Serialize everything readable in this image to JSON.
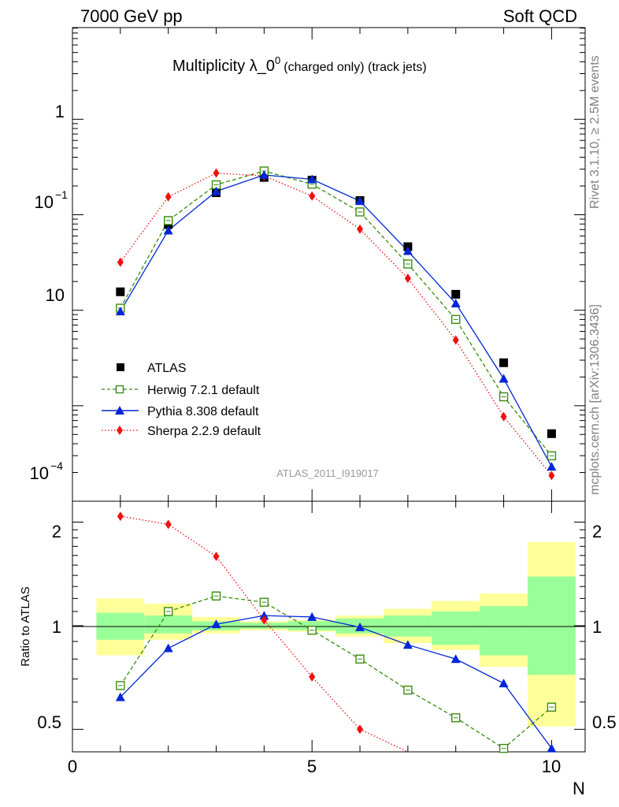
{
  "header": {
    "left": "7000 GeV pp",
    "right": "Soft QCD"
  },
  "title": {
    "main": "Multiplicity λ_0",
    "superscript": "0",
    "small": "(charged only) (track jets)"
  },
  "side_labels": {
    "rivet": "Rivet 3.1.10, ≥ 2.5M events",
    "source": "mcplots.cern.ch [arXiv:1306.3436]"
  },
  "watermark": "ATLAS_2011_I919017",
  "axes": {
    "xlabel": "N",
    "ratio_ylabel": "Ratio to ATLAS",
    "xticks": [
      "0",
      "5",
      "10"
    ],
    "main_yticks": [
      {
        "base": "1",
        "exp": ""
      },
      {
        "base": "10",
        "exp": "−1"
      },
      {
        "base": "10",
        "exp": ""
      },
      {
        "base": "10",
        "exp": "−4"
      }
    ],
    "ratio_yticks": [
      "2",
      "1",
      "0.5"
    ]
  },
  "legend": {
    "atlas": "ATLAS",
    "herwig": "Herwig 7.2.1 default",
    "pythia": "Pythia 8.308 default",
    "sherpa": "Sherpa 2.2.9 default"
  },
  "colors": {
    "atlas": "#000000",
    "herwig": "#3a8c0e",
    "pythia": "#0026d6",
    "sherpa": "#f01010",
    "band_inner": "#99ff99",
    "band_outer": "#ffff99"
  },
  "chart_data": {
    "type": "scatter",
    "title": "Multiplicity λ_0^0 (charged only) (track jets)",
    "xlabel": "N",
    "ylabel": "",
    "xlim": [
      0,
      10.7
    ],
    "ylim_log10": [
      -4.0,
      0.96
    ],
    "yscale": "log",
    "x": [
      1,
      2,
      3,
      4,
      5,
      6,
      7,
      8,
      9,
      10
    ],
    "series": [
      {
        "name": "ATLAS",
        "values": [
          0.0156,
          0.079,
          0.17,
          0.246,
          0.23,
          0.141,
          0.0463,
          0.0147,
          0.00282,
          0.00051
        ]
      },
      {
        "name": "Herwig 7.2.1 default",
        "values": [
          0.0105,
          0.087,
          0.206,
          0.287,
          0.209,
          0.107,
          0.0305,
          0.00801,
          0.00124,
          0.000299
        ]
      },
      {
        "name": "Pythia 8.308 default",
        "values": [
          0.00973,
          0.0684,
          0.176,
          0.261,
          0.235,
          0.139,
          0.0417,
          0.0118,
          0.00192,
          0.00023
        ]
      },
      {
        "name": "Sherpa 2.2.9 default",
        "values": [
          0.0318,
          0.154,
          0.273,
          0.255,
          0.157,
          0.0707,
          0.0216,
          0.00487,
          0.00077,
          0.000186
        ]
      }
    ],
    "ratio": {
      "ylabel": "Ratio to ATLAS",
      "yscale": "log",
      "ylim": [
        0.43,
        2.3
      ],
      "series": [
        {
          "name": "Herwig 7.2.1 default",
          "values": [
            0.67,
            1.1,
            1.22,
            1.17,
            0.97,
            0.8,
            0.65,
            0.54,
            0.44,
            0.58
          ]
        },
        {
          "name": "Pythia 8.308 default",
          "values": [
            0.62,
            0.86,
            1.01,
            1.07,
            1.06,
            0.99,
            0.88,
            0.8,
            0.68,
            0.44
          ]
        },
        {
          "name": "Sherpa 2.2.9 default",
          "values": [
            2.08,
            1.97,
            1.59,
            1.04,
            0.71,
            0.5,
            0.41
          ]
        }
      ],
      "band_inner": [
        [
          0.91,
          1.09
        ],
        [
          0.95,
          1.07
        ],
        [
          0.97,
          1.03
        ],
        [
          0.98,
          1.02
        ],
        [
          0.97,
          1.03
        ],
        [
          0.95,
          1.05
        ],
        [
          0.93,
          1.07
        ],
        [
          0.88,
          1.1
        ],
        [
          0.82,
          1.14
        ],
        [
          0.72,
          1.39
        ]
      ],
      "band_outer": [
        [
          0.82,
          1.2
        ],
        [
          0.91,
          1.16
        ],
        [
          0.95,
          1.06
        ],
        [
          0.97,
          1.03
        ],
        [
          0.96,
          1.04
        ],
        [
          0.93,
          1.07
        ],
        [
          0.89,
          1.12
        ],
        [
          0.85,
          1.18
        ],
        [
          0.76,
          1.24
        ],
        [
          0.51,
          1.75
        ]
      ]
    }
  }
}
